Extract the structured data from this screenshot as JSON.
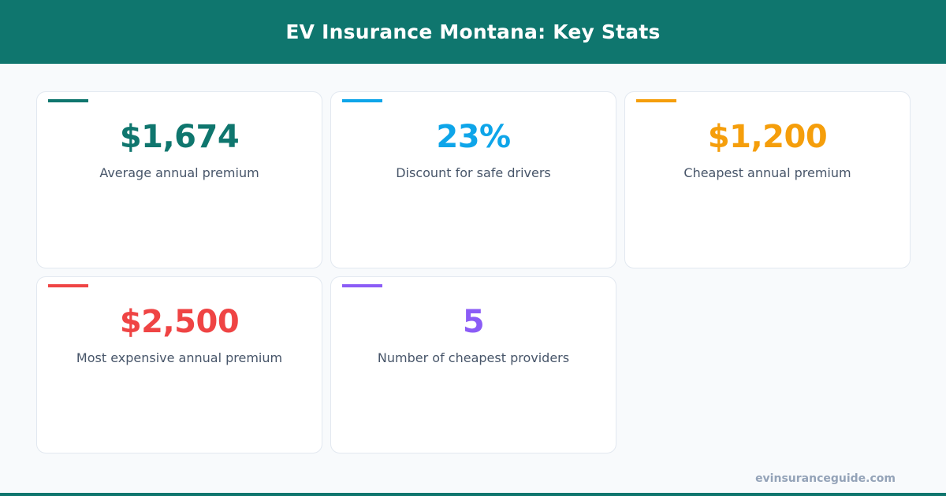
{
  "header": {
    "title": "EV Insurance Montana: Key Stats"
  },
  "stats": [
    {
      "value": "$1,674",
      "label": "Average annual premium",
      "color": "#0f766e"
    },
    {
      "value": "23%",
      "label": "Discount for safe drivers",
      "color": "#0ea5e9"
    },
    {
      "value": "$1,200",
      "label": "Cheapest annual premium",
      "color": "#f59e0b"
    },
    {
      "value": "$2,500",
      "label": "Most expensive annual premium",
      "color": "#ef4444"
    },
    {
      "value": "5",
      "label": "Number of cheapest providers",
      "color": "#8b5cf6"
    }
  ],
  "footer": {
    "site": "evinsuranceguide.com"
  }
}
